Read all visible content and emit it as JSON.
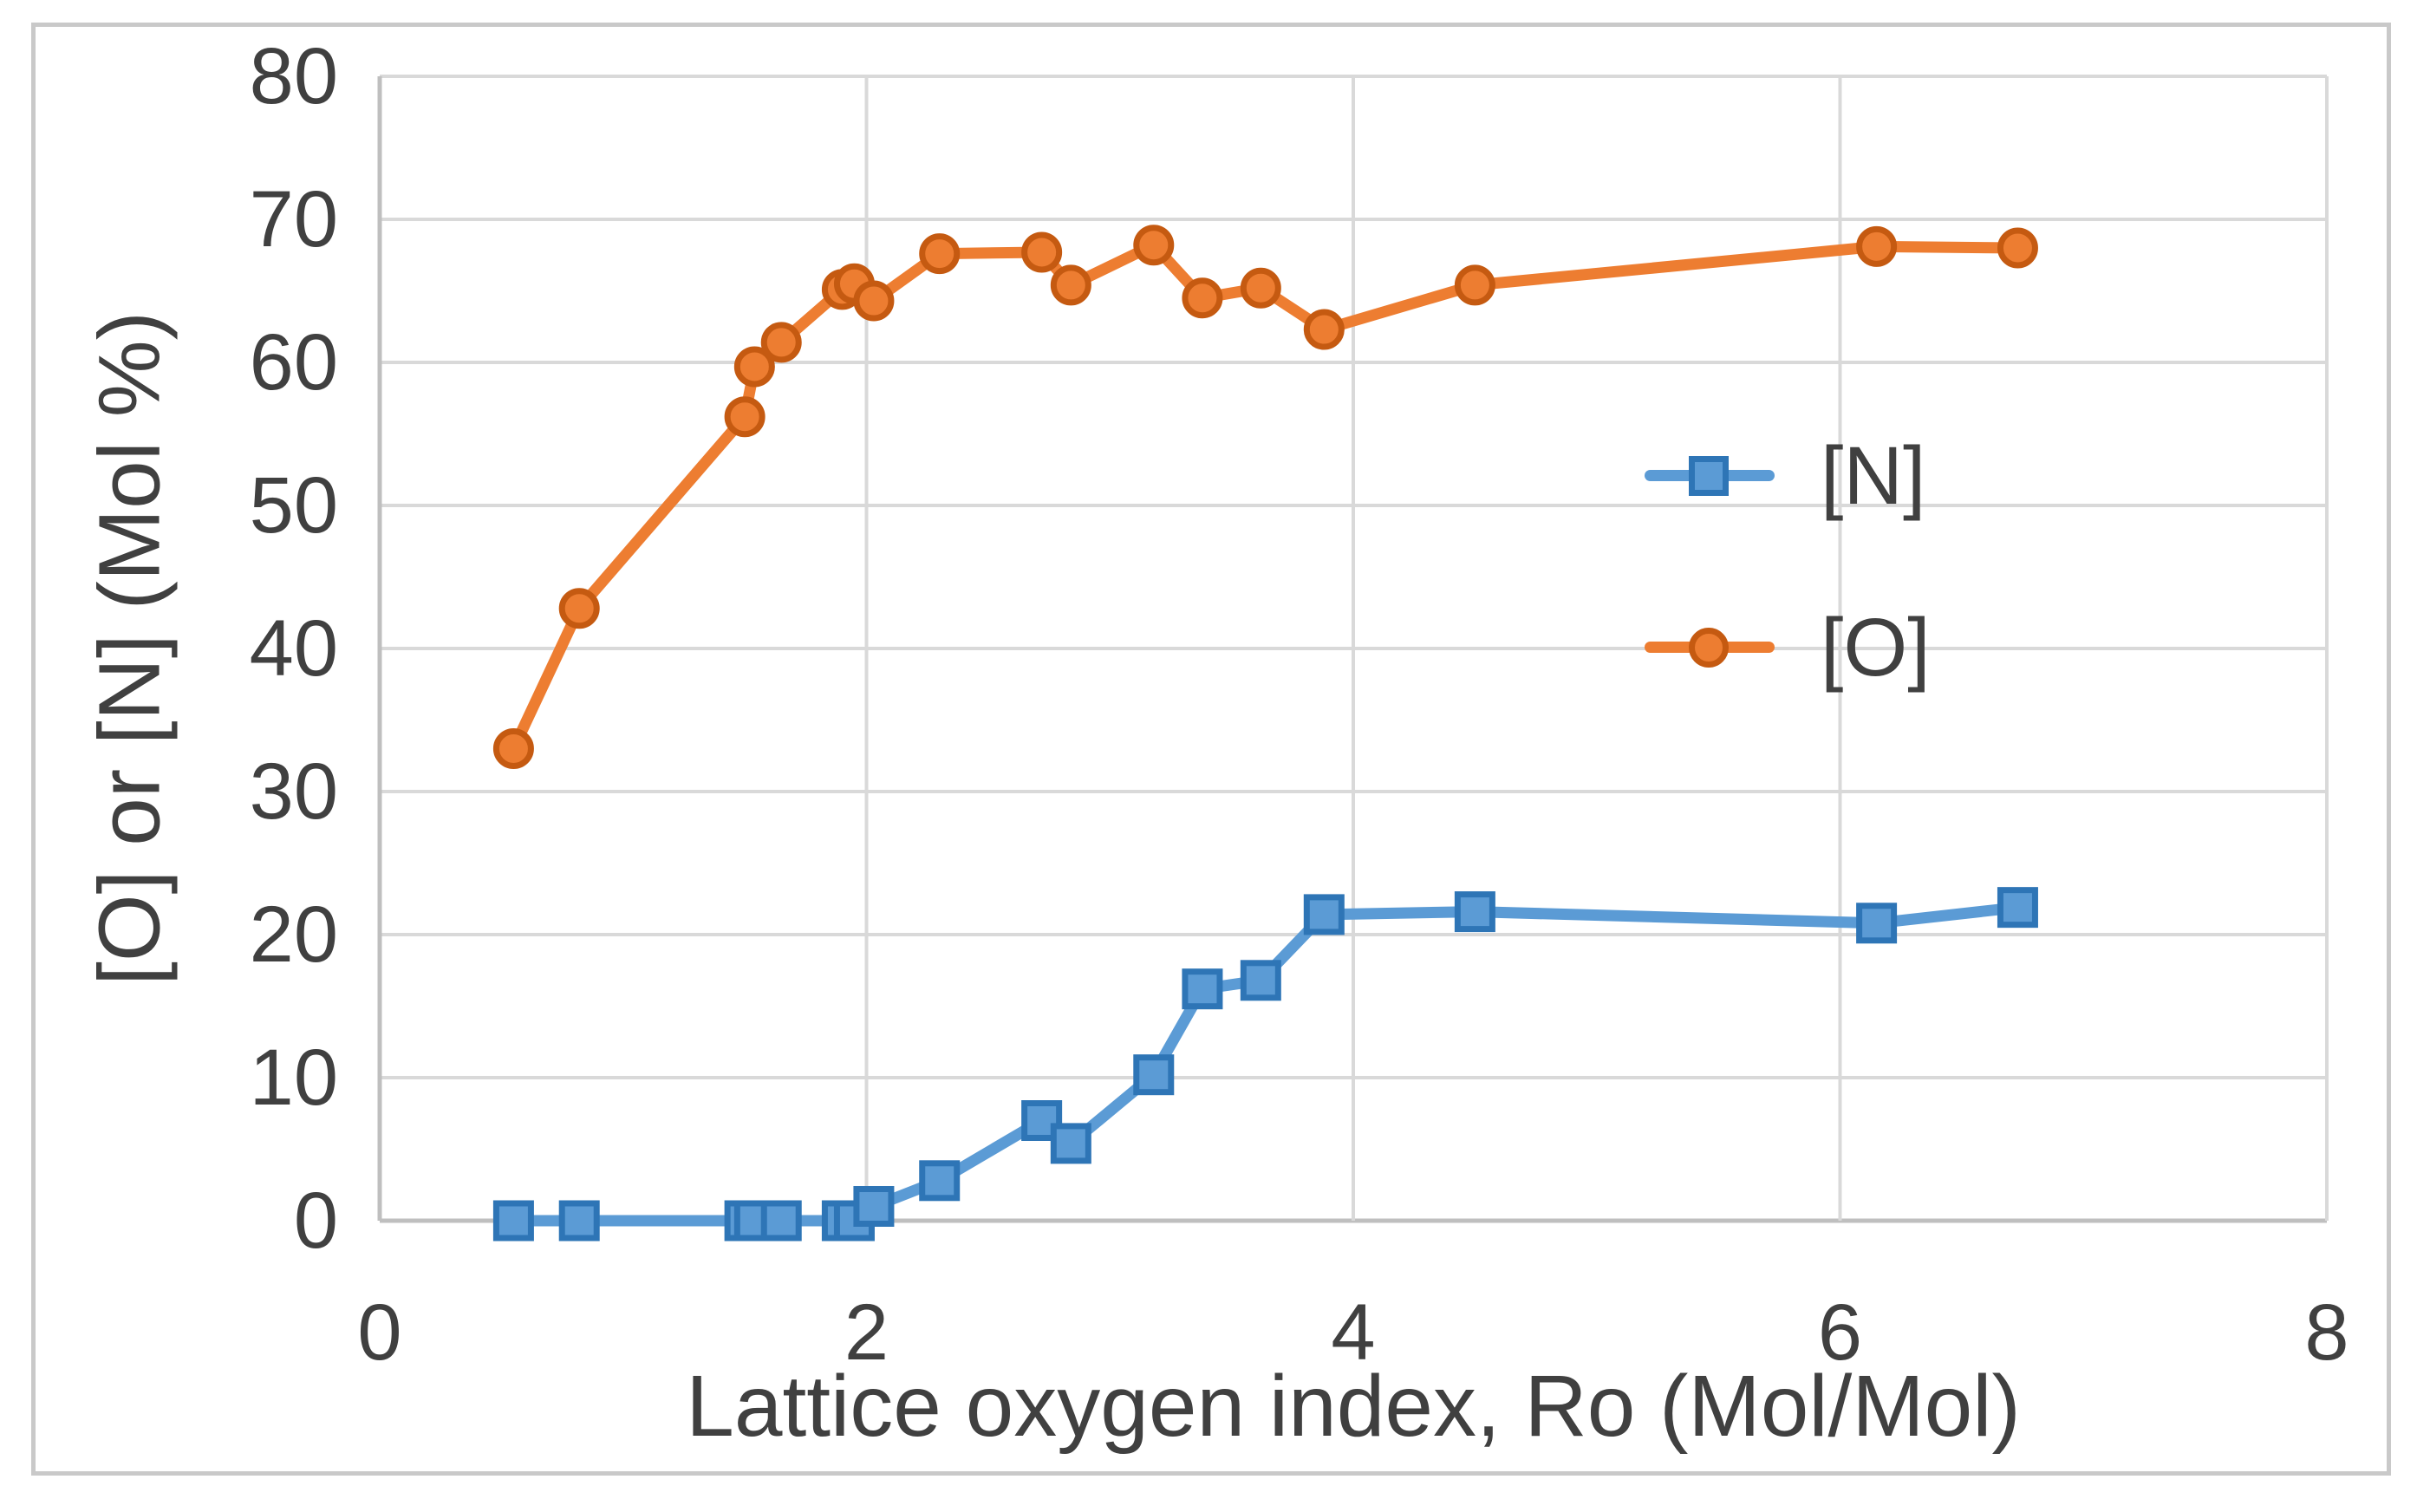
{
  "figure": {
    "background": "#FFFFFF",
    "border_color": "#C9C9C9"
  },
  "chart_data": {
    "type": "line",
    "title": "",
    "xlabel": "Lattice oxygen index, Ro (Mol/Mol)",
    "ylabel": "[O] or [N] (Mol %)",
    "xlim": [
      0,
      8
    ],
    "ylim": [
      0,
      80
    ],
    "x_ticks": [
      0,
      2,
      4,
      6,
      8
    ],
    "y_ticks": [
      0,
      10,
      20,
      30,
      40,
      50,
      60,
      70,
      80
    ],
    "grid": true,
    "gridline_color": "#D9D9D9",
    "axis_line_color": "#BFBFBF",
    "tick_label_color": "#404040",
    "legend_position": "center-right",
    "x": [
      0.55,
      0.82,
      1.5,
      1.54,
      1.65,
      1.9,
      1.95,
      2.03,
      2.3,
      2.72,
      2.84,
      3.18,
      3.38,
      3.62,
      3.88,
      4.5,
      6.15,
      6.73
    ],
    "series": [
      {
        "name": "[N]",
        "marker": "square",
        "line_color": "#5B9BD5",
        "marker_fill": "#5B9BD5",
        "marker_border": "#2E75B6",
        "values": [
          0,
          0,
          0,
          0,
          0,
          0,
          0,
          1.0,
          2.8,
          7.0,
          5.4,
          10.2,
          16.2,
          16.8,
          21.4,
          21.6,
          20.8,
          21.9
        ]
      },
      {
        "name": "[O]",
        "marker": "circle",
        "line_color": "#ED7D31",
        "marker_fill": "#ED7D31",
        "marker_border": "#C55A11",
        "values": [
          33.0,
          42.8,
          56.2,
          59.7,
          61.4,
          65.1,
          65.5,
          64.3,
          67.6,
          67.7,
          65.4,
          68.2,
          64.5,
          65.2,
          62.3,
          65.4,
          68.1,
          68.0
        ]
      }
    ]
  }
}
